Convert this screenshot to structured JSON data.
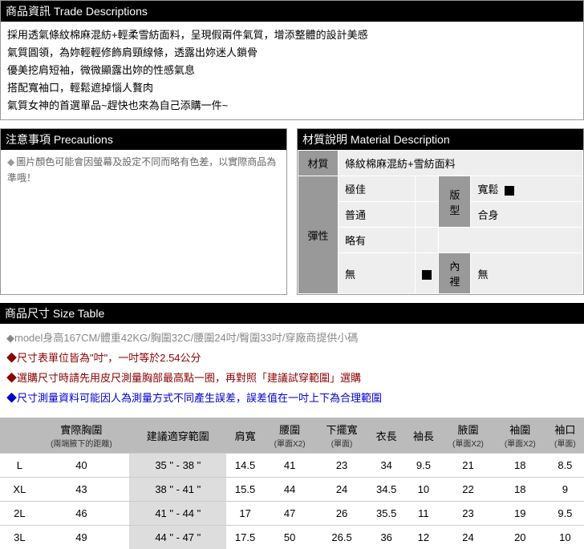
{
  "trade": {
    "header": "商品資訊 Trade Descriptions",
    "lines": [
      "採用透氣條紋棉麻混紡+輕柔雪紡面料，呈現假兩件氣質，增添整體的設計美感",
      "氣質圓領，為妳輕輕修飾肩頸線條，透露出妳迷人鎖骨",
      "優美挖肩短袖，微微顯露出妳的性感氣息",
      "搭配寬袖口，輕鬆遮掉惱人贅肉",
      "氣質女神的首選單品~趕快也來為自己添購一件~"
    ]
  },
  "precautions": {
    "header": "注意事項 Precautions",
    "text": "圖片顏色可能會因螢幕及設定不同而略有色差，以實際商品為準哦！"
  },
  "material": {
    "header": "材質說明 Material Description",
    "mat_label": "材質",
    "mat_value": "條紋棉麻混紡+雪紡面料",
    "elastic_label": "彈性",
    "e1": "極佳",
    "e2": "普通",
    "e3": "略有",
    "e4": "無",
    "fit_label": "版型",
    "fit1": "寬鬆",
    "fit2": "合身",
    "lining_label": "內裡",
    "lining_val": "無"
  },
  "size": {
    "header": "商品尺寸 Size Table",
    "n1": "◆model身高167CM/體重42KG/胸圍32C/腰圍24吋/臀圍33吋/穿廠商提供小碼",
    "n2": "◆尺寸表單位皆為\"吋\"，一吋等於2.54公分",
    "n3": "◆選購尺寸時請先用皮尺測量胸部最高點一圈，再對照「建議試穿範圍」選購",
    "n4": "◆尺寸測量資料可能因人為測量方式不同產生誤差，誤差值在一吋上下為合理範圍",
    "cols": {
      "c0": "",
      "c1": "實際胸圍",
      "c1s": "(兩端腋下的距離)",
      "c2": "建議適穿範圍",
      "c3": "肩寬",
      "c4": "腰圍",
      "c4s": "(單面X2)",
      "c5": "下擺寬",
      "c5s": "(單面)",
      "c6": "衣長",
      "c7": "袖長",
      "c8": "腋圍",
      "c8s": "(單面X2)",
      "c9": "袖圍",
      "c9s": "(單面X2)",
      "c10": "袖口",
      "c10s": "(單面)"
    },
    "rows": [
      {
        "s": "L",
        "bust": "40",
        "rec": "35 \" - 38 \"",
        "sh": "14.5",
        "wa": "41",
        "hem": "23",
        "len": "34",
        "sl": "9.5",
        "arm": "21",
        "sc": "18",
        "cuff": "8.5"
      },
      {
        "s": "XL",
        "bust": "43",
        "rec": "38 \" - 41 \"",
        "sh": "15.5",
        "wa": "44",
        "hem": "24",
        "len": "34.5",
        "sl": "10",
        "arm": "22",
        "sc": "18",
        "cuff": "9"
      },
      {
        "s": "2L",
        "bust": "46",
        "rec": "41 \" - 44 \"",
        "sh": "17",
        "wa": "47",
        "hem": "26",
        "len": "35.5",
        "sl": "11",
        "arm": "23",
        "sc": "19",
        "cuff": "9.5"
      },
      {
        "s": "3L",
        "bust": "49",
        "rec": "44 \" - 47 \"",
        "sh": "17.5",
        "wa": "50",
        "hem": "26.5",
        "len": "36",
        "sl": "12",
        "arm": "24",
        "sc": "20",
        "cuff": "10"
      }
    ]
  }
}
